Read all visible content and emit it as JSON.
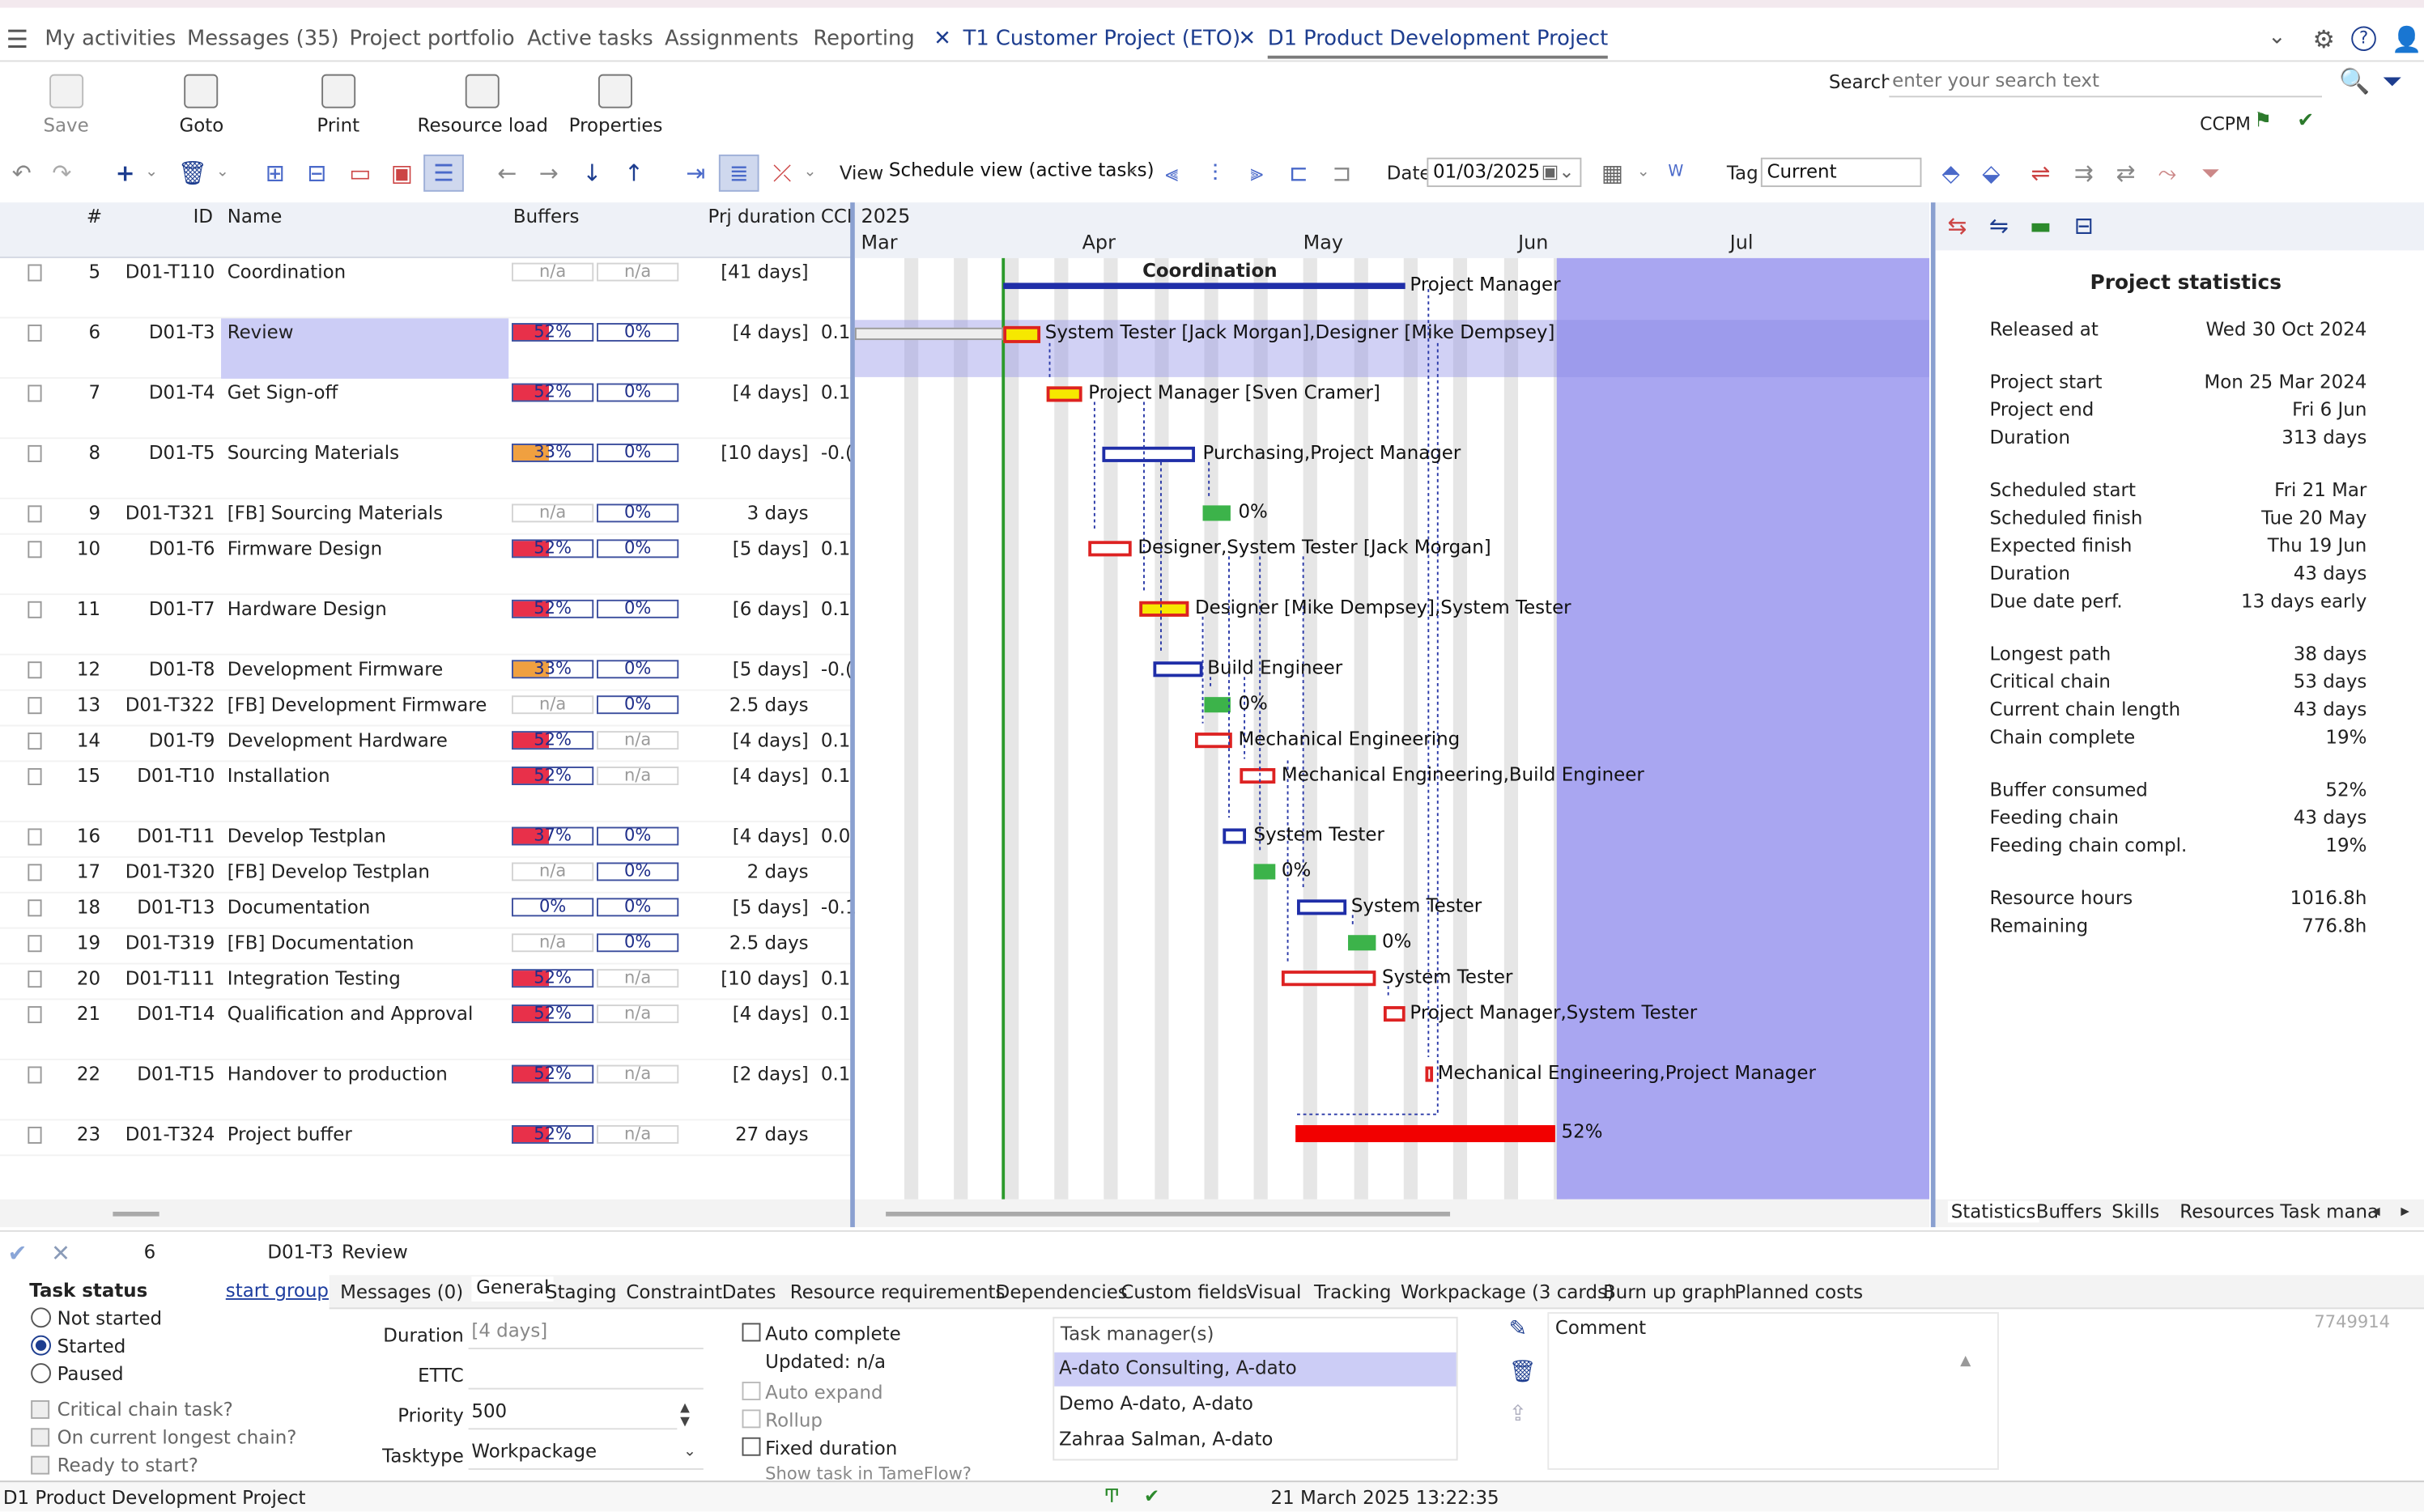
{
  "nav": {
    "menu_icon": "hamburger-icon",
    "items": [
      "My activities",
      "Messages (35)",
      "Project portfolio",
      "Active tasks",
      "Assignments",
      "Reporting"
    ],
    "tab1": "T1 Customer Project (ETO)",
    "tab2": "D1 Product Development Project"
  },
  "toolbar": {
    "save": "Save",
    "goto": "Goto",
    "print": "Print",
    "resource_load": "Resource load",
    "properties": "Properties",
    "search_label": "Search",
    "search_placeholder": "enter your search text",
    "ccpm": "CCPM",
    "view_label": "View",
    "view_value": "Schedule view (active tasks)",
    "date_label": "Date",
    "date_value": "01/03/2025",
    "tag_label": "Tag",
    "tag_value": "Current"
  },
  "grid": {
    "headers": {
      "num": "#",
      "id": "ID",
      "name": "Name",
      "buffers": "Buffers",
      "duration": "Prj duration",
      "ccp": "CCI"
    },
    "rows": [
      {
        "num": "5",
        "id": "D01-T110",
        "name": "Coordination",
        "b1": "n/a",
        "b2": "n/a",
        "dur": "[41 days]",
        "ccp": ""
      },
      {
        "num": "6",
        "id": "D01-T3",
        "name": "Review",
        "b1": "52%",
        "b2": "0%",
        "dur": "[4 days]",
        "ccp": "0.1"
      },
      {
        "num": "7",
        "id": "D01-T4",
        "name": "Get Sign-off",
        "b1": "52%",
        "b2": "0%",
        "dur": "[4 days]",
        "ccp": "0.1"
      },
      {
        "num": "8",
        "id": "D01-T5",
        "name": "Sourcing Materials",
        "b1": "33%",
        "b2": "0%",
        "dur": "[10 days]",
        "ccp": "-0.("
      },
      {
        "num": "9",
        "id": "D01-T321",
        "name": "[FB]  Sourcing Materials",
        "b1": "n/a",
        "b2": "0%",
        "dur": "3 days",
        "ccp": ""
      },
      {
        "num": "10",
        "id": "D01-T6",
        "name": "Firmware Design",
        "b1": "52%",
        "b2": "0%",
        "dur": "[5 days]",
        "ccp": "0.1"
      },
      {
        "num": "11",
        "id": "D01-T7",
        "name": "Hardware Design",
        "b1": "52%",
        "b2": "0%",
        "dur": "[6 days]",
        "ccp": "0.1"
      },
      {
        "num": "12",
        "id": "D01-T8",
        "name": "Development Firmware",
        "b1": "33%",
        "b2": "0%",
        "dur": "[5 days]",
        "ccp": "-0.("
      },
      {
        "num": "13",
        "id": "D01-T322",
        "name": "[FB]  Development Firmware",
        "b1": "n/a",
        "b2": "0%",
        "dur": "2.5 days",
        "ccp": ""
      },
      {
        "num": "14",
        "id": "D01-T9",
        "name": "Development Hardware",
        "b1": "52%",
        "b2": "n/a",
        "dur": "[4 days]",
        "ccp": "0.1"
      },
      {
        "num": "15",
        "id": "D01-T10",
        "name": "Installation",
        "b1": "52%",
        "b2": "n/a",
        "dur": "[4 days]",
        "ccp": "0.1"
      },
      {
        "num": "16",
        "id": "D01-T11",
        "name": "Develop Testplan",
        "b1": "37%",
        "b2": "0%",
        "dur": "[4 days]",
        "ccp": "0.0"
      },
      {
        "num": "17",
        "id": "D01-T320",
        "name": "[FB]  Develop Testplan",
        "b1": "n/a",
        "b2": "0%",
        "dur": "2 days",
        "ccp": ""
      },
      {
        "num": "18",
        "id": "D01-T13",
        "name": "Documentation",
        "b1": "0%",
        "b2": "0%",
        "dur": "[5 days]",
        "ccp": "-0.1"
      },
      {
        "num": "19",
        "id": "D01-T319",
        "name": "[FB]  Documentation",
        "b1": "n/a",
        "b2": "0%",
        "dur": "2.5 days",
        "ccp": ""
      },
      {
        "num": "20",
        "id": "D01-T111",
        "name": "Integration Testing",
        "b1": "52%",
        "b2": "n/a",
        "dur": "[10 days]",
        "ccp": "0.1"
      },
      {
        "num": "21",
        "id": "D01-T14",
        "name": "Qualification and Approval",
        "b1": "52%",
        "b2": "n/a",
        "dur": "[4 days]",
        "ccp": "0.1"
      },
      {
        "num": "22",
        "id": "D01-T15",
        "name": "Handover to production",
        "b1": "52%",
        "b2": "n/a",
        "dur": "[2 days]",
        "ccp": "0.1"
      },
      {
        "num": "23",
        "id": "D01-T324",
        "name": "Project buffer",
        "b1": "52%",
        "b2": "n/a",
        "dur": "27 days",
        "ccp": ""
      }
    ]
  },
  "gantt": {
    "year": "2025",
    "months": [
      "Mar",
      "Apr",
      "May",
      "Jun",
      "Jul"
    ],
    "group_label": "Coordination",
    "labels": [
      "Project Manager",
      "System Tester [Jack Morgan],Designer [Mike Dempsey]",
      "Project Manager [Sven Cramer]",
      "Purchasing,Project Manager",
      "0%",
      "Designer,System Tester [Jack Morgan]",
      "Designer [Mike Dempsey],System Tester",
      "Build Engineer",
      "0%",
      "Mechanical Engineering",
      "Mechanical Engineering,Build Engineer",
      "System Tester",
      "0%",
      "System Tester",
      "0%",
      "System Tester",
      "Project Manager,System Tester",
      "Mechanical Engineering,Project Manager",
      "52%"
    ]
  },
  "stats": {
    "title": "Project statistics",
    "items": [
      [
        "Released at",
        "Wed 30 Oct 2024"
      ],
      [
        "Project start",
        "Mon 25 Mar 2024"
      ],
      [
        "Project end",
        "Fri 6 Jun"
      ],
      [
        "Duration",
        "313 days"
      ],
      [
        "Scheduled start",
        "Fri 21 Mar"
      ],
      [
        "Scheduled finish",
        "Tue 20 May"
      ],
      [
        "Expected finish",
        "Thu 19 Jun"
      ],
      [
        "Duration",
        "43 days"
      ],
      [
        "Due date perf.",
        "13 days early"
      ],
      [
        "Longest path",
        "38 days"
      ],
      [
        "Critical chain",
        "53 days"
      ],
      [
        "Current chain length",
        "43 days"
      ],
      [
        "Chain complete",
        "19%"
      ],
      [
        "Buffer consumed",
        "52%"
      ],
      [
        "Feeding chain",
        "43 days"
      ],
      [
        "Feeding chain compl.",
        "19%"
      ],
      [
        "Resource hours",
        "1016.8h"
      ],
      [
        "Remaining",
        "776.8h"
      ]
    ],
    "tabs": [
      "Statistics",
      "Buffers",
      "Skills",
      "Resources",
      "Task mana"
    ]
  },
  "detail": {
    "num": "6",
    "id": "D01-T3",
    "name": "Review",
    "task_status": "Task status",
    "start_group": "start group",
    "statuses": [
      "Not started",
      "Started",
      "Paused"
    ],
    "checks": [
      "Critical chain task?",
      "On current longest chain?",
      "Ready to start?"
    ],
    "tabs": [
      "Messages (0)",
      "General",
      "Staging",
      "Constraint",
      "Dates",
      "Resource requirements",
      "Dependencies",
      "Custom fields",
      "Visual",
      "Tracking",
      "Workpackage (3 cards)",
      "Burn up graph",
      "Planned costs"
    ],
    "duration_label": "Duration",
    "duration_value": "[4 days]",
    "ettc_label": "ETTC",
    "priority_label": "Priority",
    "priority_value": "500",
    "tasktype_label": "Tasktype",
    "tasktype_value": "Workpackage",
    "auto_complete": "Auto complete",
    "updated": "Updated: n/a",
    "auto_expand": "Auto expand",
    "rollup": "Rollup",
    "fixed_duration": "Fixed duration",
    "show_tameflow": "Show task in TameFlow?",
    "task_managers_label": "Task manager(s)",
    "task_managers": [
      "A-dato Consulting, A-dato",
      "Demo A-dato, A-dato",
      "Zahraa Salman, A-dato"
    ],
    "comment_label": "Comment",
    "record_id": "7749914"
  },
  "status": {
    "project": "D1 Product Development Project",
    "datetime": "21 March 2025 13:22:35"
  }
}
